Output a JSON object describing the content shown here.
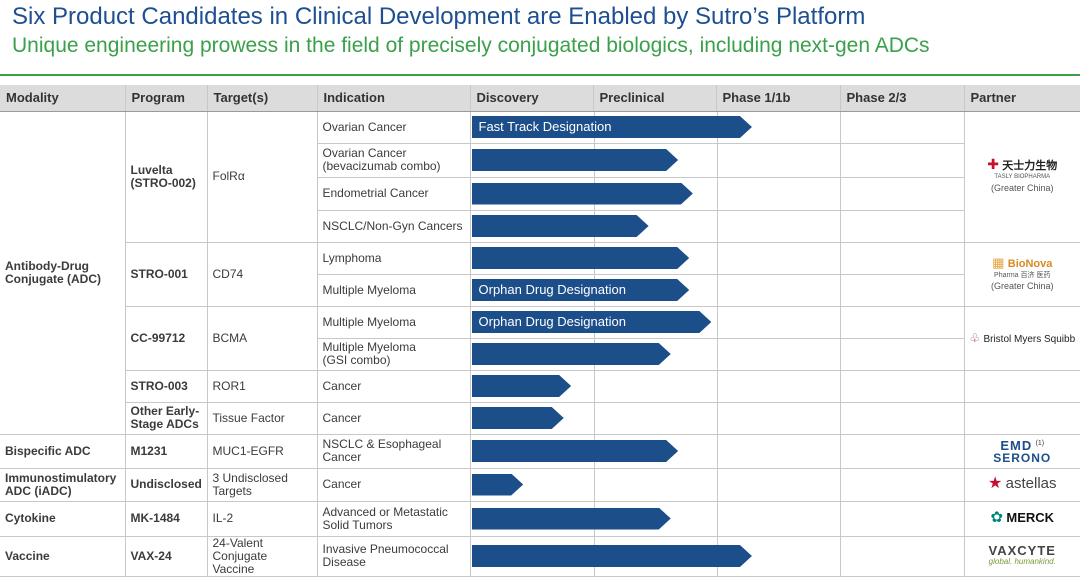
{
  "header": {
    "title": "Six Product Candidates in Clinical Development are Enabled by Sutro’s Platform",
    "subtitle": "Unique engineering prowess in the field of precisely conjugated biologics, including next-gen ADCs"
  },
  "columns": {
    "modality": "Modality",
    "program": "Program",
    "targets": "Target(s)",
    "indication": "Indication",
    "discovery": "Discovery",
    "preclinical": "Preclinical",
    "phase1": "Phase 1/1b",
    "phase23": "Phase 2/3",
    "partner": "Partner"
  },
  "colors": {
    "bar": "#1c4f8a",
    "title": "#1d4f91",
    "subtitle": "#3aa04a"
  },
  "rows": [
    {
      "indication": "Ovarian Cancer",
      "progress": 0.76,
      "bar_label": "Fast Track Designation"
    },
    {
      "indication": "Ovarian Cancer\n(bevacizumab combo)",
      "progress": 0.56,
      "bar_label": ""
    },
    {
      "indication": "Endometrial Cancer",
      "progress": 0.6,
      "bar_label": ""
    },
    {
      "indication": "NSCLC/Non-Gyn Cancers",
      "progress": 0.48,
      "bar_label": ""
    },
    {
      "indication": "Lymphoma",
      "progress": 0.59,
      "bar_label": ""
    },
    {
      "indication": "Multiple Myeloma",
      "progress": 0.59,
      "bar_label": "Orphan Drug Designation"
    },
    {
      "indication": "Multiple Myeloma",
      "progress": 0.65,
      "bar_label": "Orphan Drug Designation"
    },
    {
      "indication": "Multiple Myeloma\n(GSI combo)",
      "progress": 0.54,
      "bar_label": ""
    },
    {
      "indication": "Cancer",
      "progress": 0.27,
      "bar_label": ""
    },
    {
      "indication": "Cancer",
      "progress": 0.25,
      "bar_label": ""
    },
    {
      "indication": "NSCLC & Esophageal\nCancer",
      "progress": 0.56,
      "bar_label": ""
    },
    {
      "indication": "Cancer",
      "progress": 0.14,
      "bar_label": ""
    },
    {
      "indication": "Advanced or Metastatic\nSolid Tumors",
      "progress": 0.54,
      "bar_label": ""
    },
    {
      "indication": "Invasive Pneumococcal\nDisease",
      "progress": 0.76,
      "bar_label": ""
    }
  ],
  "modalities": {
    "adc": "Antibody-Drug\nConjugate (ADC)",
    "bispecific": "Bispecific ADC",
    "iadc": "Immunostimulatory\nADC (iADC)",
    "cytokine": "Cytokine",
    "vaccine": "Vaccine"
  },
  "programs": {
    "luvelta": "Luvelta\n(STRO-002)",
    "stro001": "STRO-001",
    "cc99712": "CC-99712",
    "stro003": "STRO-003",
    "other": "Other Early-\nStage ADCs",
    "m1231": "M1231",
    "undisclosed": "Undisclosed",
    "mk1484": "MK-1484",
    "vax24": "VAX-24"
  },
  "targets": {
    "luvelta": "FolRα",
    "stro001": "CD74",
    "cc99712": "BCMA",
    "stro003": "ROR1",
    "other": "Tissue Factor",
    "m1231": "MUC1-EGFR",
    "undisclosed": "3 Undisclosed\nTargets",
    "mk1484": "IL-2",
    "vax24": "24-Valent\nConjugate Vaccine"
  },
  "partners": {
    "tasly": {
      "name": "天士力生物",
      "sub": "TASLY BIOPHARMA",
      "region": "(Greater China)"
    },
    "bionova": {
      "name": "BioNova",
      "sub": "Pharma 百济 医药",
      "region": "(Greater China)"
    },
    "bms": {
      "name": "Bristol Myers Squibb"
    },
    "emd": {
      "name1": "EMD",
      "name2": "SERONO",
      "note": "(1)"
    },
    "astellas": {
      "name": "astellas"
    },
    "merck": {
      "name": "MERCK"
    },
    "vaxcyte": {
      "name": "VAXCYTE",
      "tagline": "global. humankind."
    }
  }
}
